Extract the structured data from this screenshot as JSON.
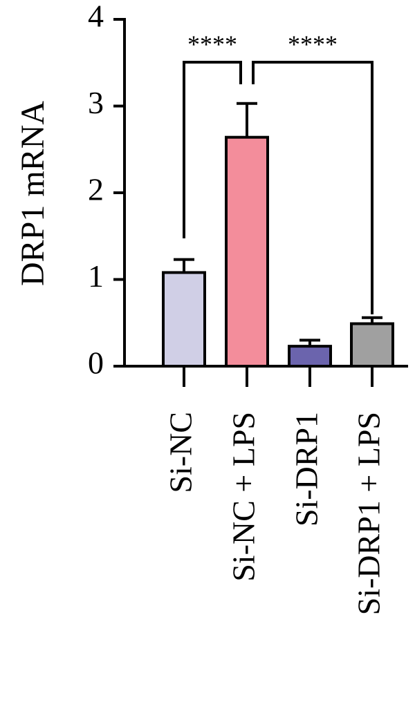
{
  "chart_data": {
    "type": "bar",
    "y_label": "DRP1 mRNA",
    "categories": [
      "Si-NC",
      "Si-NC + LPS",
      "Si-DRP1",
      "Si-DRP1 + LPS"
    ],
    "values": [
      1.08,
      2.64,
      0.23,
      0.49
    ],
    "errors": [
      0.15,
      0.39,
      0.07,
      0.07
    ],
    "colors": [
      "#d0cfe6",
      "#f38d9b",
      "#6b64ad",
      "#a0a0a0"
    ],
    "ylim": [
      0,
      4
    ],
    "yticks": [
      0,
      1,
      2,
      3,
      4
    ],
    "annotations": [
      "****",
      "****"
    ]
  }
}
